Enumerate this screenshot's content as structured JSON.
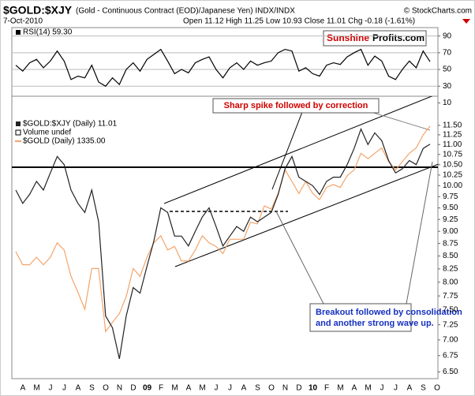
{
  "header": {
    "symbol": "$GOLD:$XJY",
    "description": "(Gold - Continuous Contract (EOD)/Japanese Yen) INDX/INDX",
    "credit": "© StockCharts.com",
    "date": "7-Oct-2010",
    "quote": "Open 11.12 High 11.25 Low 10.93 Close 11.01 Chg -0.18 (-1.61%)"
  },
  "logo": {
    "part1": "Sunshine",
    "part2": "Profits.com"
  },
  "annotations": {
    "spike": "Sharp spike followed by correction",
    "breakout": [
      "Breakout followed by consolidation",
      "and another strong wave up."
    ]
  },
  "chart_data": [
    {
      "type": "line",
      "series": [
        {
          "name": "RSI(14) 59.30",
          "color": "#000000",
          "values": [
            55,
            48,
            58,
            62,
            52,
            60,
            72,
            60,
            38,
            42,
            40,
            55,
            35,
            30,
            40,
            32,
            50,
            58,
            48,
            62,
            68,
            74,
            60,
            45,
            50,
            46,
            58,
            62,
            65,
            50,
            40,
            52,
            58,
            50,
            60,
            55,
            58,
            60,
            70,
            74,
            72,
            48,
            52,
            45,
            42,
            55,
            58,
            56,
            65,
            70,
            74,
            55,
            66,
            60,
            42,
            38,
            50,
            60,
            52,
            72,
            59.3
          ]
        }
      ],
      "ylim": [
        18,
        100
      ],
      "yticks": [
        90,
        70,
        50,
        30,
        10
      ],
      "grid": true
    },
    {
      "type": "line",
      "log": true,
      "volume_label": "Volume undef",
      "categories": [
        "A",
        null,
        "M",
        null,
        "J",
        null,
        "J",
        null,
        "A",
        null,
        "S",
        null,
        "O",
        null,
        "N",
        null,
        "D",
        null,
        "09",
        null,
        "F",
        null,
        "M",
        null,
        "A",
        null,
        "M",
        null,
        "J",
        null,
        "J",
        null,
        "A",
        null,
        "S",
        null,
        "O",
        null,
        "N",
        null,
        "D",
        null,
        "10",
        null,
        "F",
        null,
        "M",
        null,
        "A",
        null,
        "M",
        null,
        "J",
        null,
        "J",
        null,
        "A",
        null,
        "S",
        null,
        "O"
      ],
      "series": [
        {
          "name": "$GOLD:$XJY (Daily) 11.01",
          "color": "#222222",
          "values": [
            9.9,
            9.6,
            9.8,
            10.1,
            9.9,
            10.3,
            10.7,
            10.5,
            9.9,
            9.6,
            9.4,
            9.9,
            9.2,
            7.4,
            7.2,
            6.7,
            7.4,
            7.9,
            7.8,
            8.3,
            8.8,
            9.5,
            9.4,
            8.9,
            8.9,
            8.7,
            9.0,
            9.3,
            9.5,
            9.1,
            8.7,
            8.9,
            9.1,
            9.0,
            9.3,
            9.2,
            9.3,
            9.4,
            9.8,
            10.4,
            10.7,
            10.2,
            10.1,
            10.0,
            9.8,
            10.1,
            10.2,
            10.2,
            10.5,
            10.9,
            11.4,
            11.0,
            11.3,
            11.1,
            10.6,
            10.3,
            10.4,
            10.6,
            10.5,
            10.9,
            11.01
          ]
        },
        {
          "name": "$GOLD (Daily) 1335.00",
          "color": "#f4a46a",
          "axis": "y2",
          "values": [
            915,
            880,
            880,
            900,
            880,
            900,
            940,
            920,
            850,
            810,
            770,
            870,
            870,
            720,
            740,
            760,
            800,
            870,
            850,
            900,
            940,
            960,
            920,
            930,
            890,
            890,
            920,
            960,
            940,
            930,
            910,
            950,
            950,
            950,
            1000,
            995,
            1050,
            1040,
            1090,
            1170,
            1130,
            1090,
            1130,
            1090,
            1070,
            1110,
            1120,
            1110,
            1150,
            1170,
            1230,
            1210,
            1230,
            1250,
            1200,
            1170,
            1200,
            1230,
            1250,
            1300,
            1335
          ]
        }
      ],
      "ylim": [
        6.4,
        12.3
      ],
      "yticks": [
        {
          "value": 11.5,
          "label": "11.50"
        },
        11.25,
        {
          "value": 11,
          "label": "11.00"
        },
        10.75,
        {
          "value": 10.5,
          "label": "10.50"
        },
        10.25,
        {
          "value": 10,
          "label": "10.00"
        },
        9.75,
        {
          "value": 9.5,
          "label": "9.50"
        },
        9.25,
        {
          "value": 9,
          "label": "9.00"
        },
        8.75,
        {
          "value": 8.5,
          "label": "8.50"
        },
        8.25,
        {
          "value": 8,
          "label": "8.00"
        },
        7.75,
        {
          "value": 7.5,
          "label": "7.50"
        },
        7.25,
        {
          "value": 7,
          "label": "7.00"
        },
        6.75,
        {
          "value": 6.5,
          "label": "6.50"
        }
      ],
      "y2lim": [
        625,
        1460
      ],
      "grid": false
    }
  ]
}
